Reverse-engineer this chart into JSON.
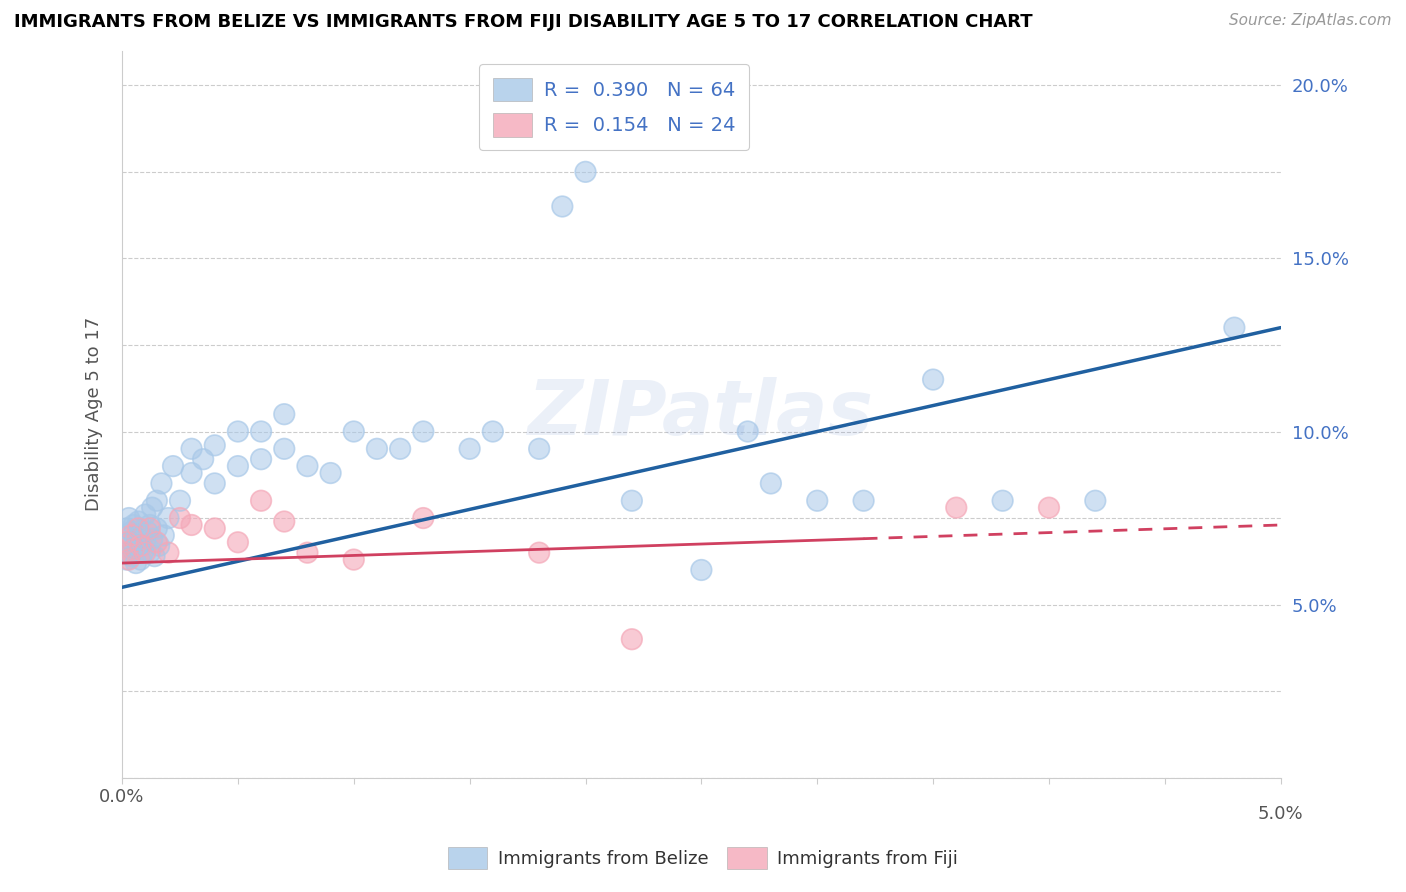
{
  "title": "IMMIGRANTS FROM BELIZE VS IMMIGRANTS FROM FIJI DISABILITY AGE 5 TO 17 CORRELATION CHART",
  "source": "Source: ZipAtlas.com",
  "ylabel": "Disability Age 5 to 17",
  "xlim": [
    0.0,
    0.05
  ],
  "ylim": [
    0.0,
    0.21
  ],
  "xticks": [
    0.0,
    0.005,
    0.01,
    0.015,
    0.02,
    0.025,
    0.03,
    0.035,
    0.04,
    0.045,
    0.05
  ],
  "yticks": [
    0.0,
    0.025,
    0.05,
    0.075,
    0.1,
    0.125,
    0.15,
    0.175,
    0.2
  ],
  "yticklabels": [
    "",
    "",
    "5.0%",
    "",
    "10.0%",
    "",
    "15.0%",
    "",
    "20.0%"
  ],
  "belize_color": "#a8c8e8",
  "fiji_color": "#f4a8b8",
  "belize_line_color": "#2060a0",
  "fiji_line_color": "#d04060",
  "belize_r": "R =  0.390",
  "belize_n": "N = 64",
  "fiji_r": "R =  0.154",
  "fiji_n": "N = 24",
  "belize_trend_x0": 0.0,
  "belize_trend_y0": 0.055,
  "belize_trend_x1": 0.05,
  "belize_trend_y1": 0.13,
  "fiji_trend_x0": 0.0,
  "fiji_trend_y0": 0.062,
  "fiji_trend_x1": 0.05,
  "fiji_trend_y1": 0.073,
  "belize_x": [
    0.0001,
    0.0002,
    0.0002,
    0.0003,
    0.0003,
    0.0004,
    0.0004,
    0.0005,
    0.0005,
    0.0006,
    0.0006,
    0.0007,
    0.0007,
    0.0008,
    0.0008,
    0.0009,
    0.001,
    0.001,
    0.0011,
    0.0012,
    0.0012,
    0.0013,
    0.0013,
    0.0014,
    0.0015,
    0.0015,
    0.0016,
    0.0017,
    0.0018,
    0.002,
    0.0022,
    0.0025,
    0.003,
    0.003,
    0.0035,
    0.004,
    0.004,
    0.005,
    0.005,
    0.006,
    0.006,
    0.007,
    0.007,
    0.008,
    0.009,
    0.01,
    0.011,
    0.012,
    0.013,
    0.015,
    0.016,
    0.018,
    0.019,
    0.02,
    0.022,
    0.025,
    0.027,
    0.028,
    0.03,
    0.032,
    0.035,
    0.038,
    0.042,
    0.048
  ],
  "belize_y": [
    0.065,
    0.063,
    0.072,
    0.068,
    0.075,
    0.064,
    0.071,
    0.066,
    0.073,
    0.062,
    0.069,
    0.067,
    0.074,
    0.063,
    0.07,
    0.065,
    0.068,
    0.076,
    0.071,
    0.065,
    0.073,
    0.069,
    0.078,
    0.064,
    0.072,
    0.08,
    0.067,
    0.085,
    0.07,
    0.075,
    0.09,
    0.08,
    0.088,
    0.095,
    0.092,
    0.085,
    0.096,
    0.09,
    0.1,
    0.092,
    0.1,
    0.095,
    0.105,
    0.09,
    0.088,
    0.1,
    0.095,
    0.095,
    0.1,
    0.095,
    0.1,
    0.095,
    0.165,
    0.175,
    0.08,
    0.06,
    0.1,
    0.085,
    0.08,
    0.08,
    0.115,
    0.08,
    0.08,
    0.13
  ],
  "fiji_x": [
    0.0001,
    0.0002,
    0.0003,
    0.0004,
    0.0005,
    0.0007,
    0.0008,
    0.001,
    0.0012,
    0.0015,
    0.002,
    0.0025,
    0.003,
    0.004,
    0.005,
    0.006,
    0.007,
    0.008,
    0.01,
    0.013,
    0.018,
    0.022,
    0.036,
    0.04
  ],
  "fiji_y": [
    0.065,
    0.068,
    0.063,
    0.07,
    0.066,
    0.072,
    0.067,
    0.065,
    0.072,
    0.068,
    0.065,
    0.075,
    0.073,
    0.072,
    0.068,
    0.08,
    0.074,
    0.065,
    0.063,
    0.075,
    0.065,
    0.04,
    0.078,
    0.078
  ]
}
